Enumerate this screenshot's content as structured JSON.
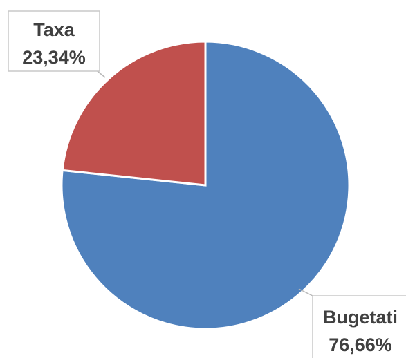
{
  "chart_data": {
    "type": "pie",
    "title": "",
    "slices": [
      {
        "label": "Bugetati",
        "value": 76.66,
        "display": "76,66%",
        "color": "#4f81bd"
      },
      {
        "label": "Taxa",
        "value": 23.34,
        "display": "23,34%",
        "color": "#c0504d"
      }
    ],
    "legend": "none",
    "data_labels": "outside-with-category-and-percent"
  }
}
